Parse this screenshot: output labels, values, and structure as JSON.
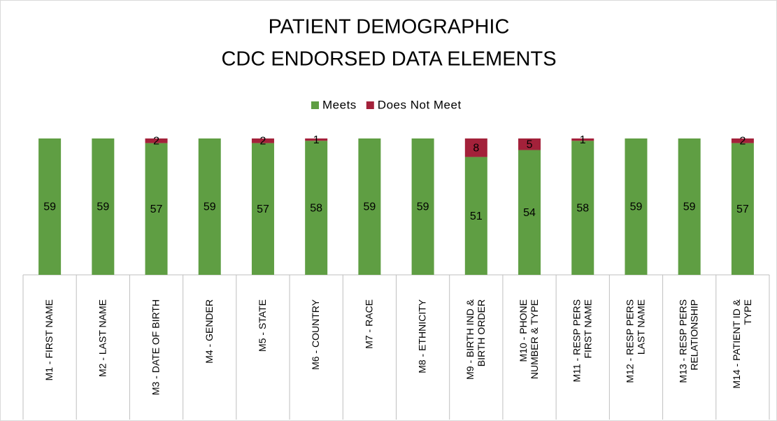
{
  "chart_data": {
    "type": "stacked_bar",
    "title": "PATIENT DEMOGRAPHIC",
    "subtitle": "CDC ENDORSED DATA ELEMENTS",
    "categories": [
      "M1  -  FIRST NAME",
      "M2  -  LAST NAME",
      "M3  -  DATE OF BIRTH",
      "M4  -  GENDER",
      "M5  -  STATE",
      "M6  -  COUNTRY",
      "M7  -  RACE",
      "M8  -  ETHNICITY",
      "M9  -  BIRTH IND & BIRTH ORDER",
      "M10  -  PHONE NUMBER & TYPE",
      "M11  -  RESP PERS FIRST NAME",
      "M12  -  RESP PERS LAST NAME",
      "M13  -  RESP PERS RELATIONSHIP",
      "M14  -  PATIENT ID & TYPE"
    ],
    "series": [
      {
        "name": "Meets",
        "color": "#5f9e43",
        "values": [
          59,
          59,
          57,
          59,
          57,
          58,
          59,
          59,
          51,
          54,
          58,
          59,
          59,
          57
        ]
      },
      {
        "name": "Does Not Meet",
        "color": "#a3213a",
        "values": [
          0,
          0,
          2,
          0,
          2,
          1,
          0,
          0,
          8,
          5,
          1,
          0,
          0,
          2
        ]
      }
    ],
    "ylim": [
      0,
      59
    ],
    "legend": "top"
  }
}
